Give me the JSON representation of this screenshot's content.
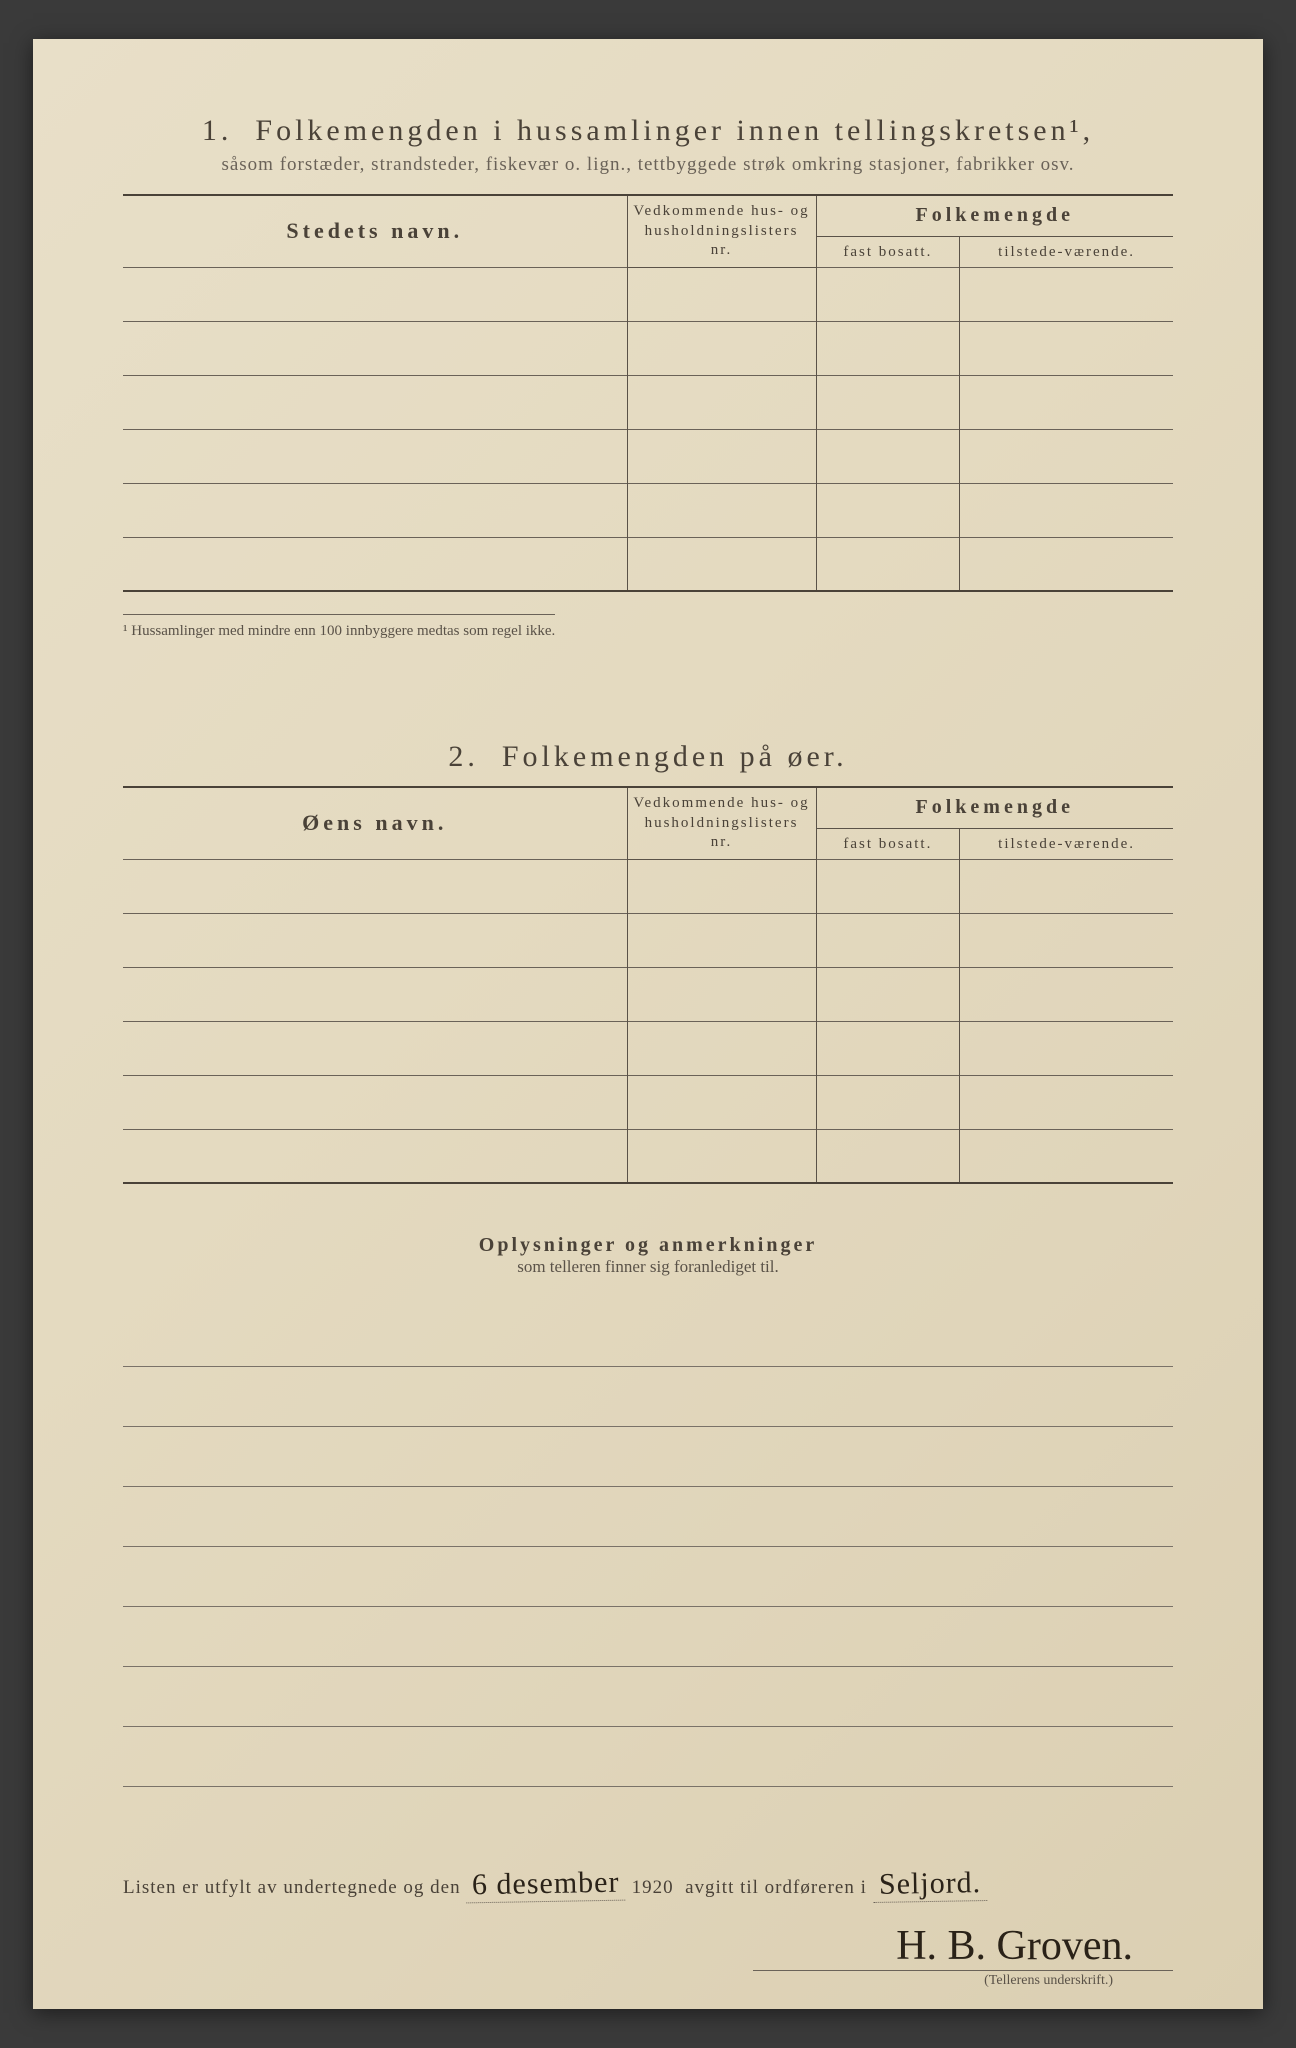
{
  "section1": {
    "number": "1.",
    "title": "Folkemengden i hussamlinger innen tellingskretsen¹,",
    "subtitle": "såsom forstæder, strandsteder, fiskevær o. lign., tettbyggede strøk omkring stasjoner, fabrikker osv.",
    "col_name": "Stedets navn.",
    "col_list": "Vedkommende hus- og husholdningslisters nr.",
    "col_folk": "Folkemengde",
    "col_fast": "fast bosatt.",
    "col_tilstede": "tilstede-værende.",
    "footnote": "¹ Hussamlinger med mindre enn 100 innbyggere medtas som regel ikke.",
    "row_count": 6
  },
  "section2": {
    "number": "2.",
    "title": "Folkemengden på øer.",
    "col_name": "Øens navn.",
    "col_list": "Vedkommende hus- og husholdningslisters nr.",
    "col_folk": "Folkemengde",
    "col_fast": "fast bosatt.",
    "col_tilstede": "tilstede-værende.",
    "row_count": 6
  },
  "remarks": {
    "heading": "Oplysninger og anmerkninger",
    "sub": "som telleren finner sig foranlediget til.",
    "line_count": 8
  },
  "footer": {
    "prefix": "Listen er utfylt av undertegnede og den",
    "date_hand": "6 desember",
    "year": "1920",
    "mid": "avgitt til ordføreren i",
    "place_hand": "Seljord.",
    "signature": "H. B. Groven.",
    "caption": "(Tellerens underskrift.)"
  },
  "style": {
    "paper_bg": "#e4dac0",
    "text_color": "#5a5248",
    "rule_color": "#6a6258",
    "ink_color": "#2a2218"
  }
}
